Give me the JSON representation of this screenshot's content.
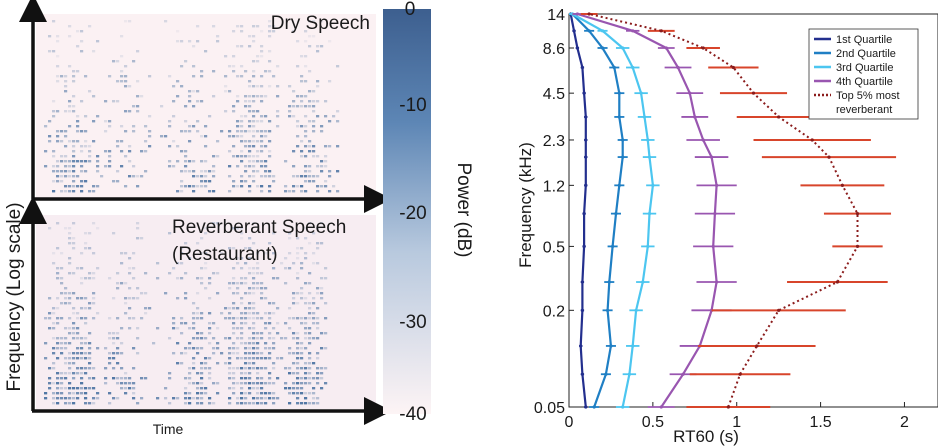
{
  "left_panel": {
    "y_axis_label": "Frequency (Log scale)",
    "x_axis_label": "Time",
    "top_title": "Dry Speech",
    "bottom_title_line1": "Reverberant Speech",
    "bottom_title_line2": "(Restaurant)",
    "colorbar": {
      "label": "Power (dB)",
      "ticks": [
        "0",
        "-10",
        "-20",
        "-30",
        "-40"
      ],
      "range": [
        -40,
        0
      ],
      "color_high": "#3d5f8f",
      "color_low": "#fdf4f5"
    }
  },
  "chart_data": {
    "type": "line",
    "xlabel": "RT60 (s)",
    "ylabel": "Frequency (kHz)",
    "xlim": [
      0,
      2.2
    ],
    "x_ticks": [
      "0",
      "0.5",
      "1",
      "1.5",
      "2"
    ],
    "y_scale": "log",
    "y_ticks": [
      "0.05",
      "0.2",
      "0.5",
      "1.2",
      "2.3",
      "4.5",
      "8.6",
      "14"
    ],
    "y_tick_values": [
      0.05,
      0.2,
      0.5,
      1.2,
      2.3,
      4.5,
      8.6,
      14
    ],
    "legend_position": "top-right",
    "freqs": [
      0.05,
      0.08,
      0.12,
      0.2,
      0.3,
      0.5,
      0.8,
      1.2,
      1.8,
      2.3,
      3.2,
      4.5,
      6.5,
      8.6,
      11,
      14
    ],
    "series": [
      {
        "name": "1st Quartile",
        "color": "#232f8e",
        "style": "solid",
        "values": [
          0.1,
          0.08,
          0.07,
          0.08,
          0.08,
          0.09,
          0.09,
          0.1,
          0.1,
          0.1,
          0.1,
          0.09,
          0.08,
          0.05,
          0.03,
          0.01
        ],
        "errors": [
          0.01,
          0.01,
          0.01,
          0.01,
          0.01,
          0.01,
          0.01,
          0.01,
          0.01,
          0.01,
          0.01,
          0.01,
          0.01,
          0.01,
          0.01,
          0.01
        ]
      },
      {
        "name": "2nd Quartile",
        "color": "#1f7fc4",
        "style": "solid",
        "values": [
          0.15,
          0.22,
          0.25,
          0.23,
          0.24,
          0.26,
          0.28,
          0.3,
          0.32,
          0.32,
          0.3,
          0.3,
          0.27,
          0.2,
          0.12,
          0.02
        ],
        "errors": [
          0.03,
          0.03,
          0.03,
          0.03,
          0.03,
          0.03,
          0.03,
          0.03,
          0.03,
          0.03,
          0.03,
          0.03,
          0.03,
          0.03,
          0.03,
          0.02
        ]
      },
      {
        "name": "3rd Quartile",
        "color": "#4cc6f0",
        "style": "solid",
        "values": [
          0.32,
          0.36,
          0.38,
          0.4,
          0.44,
          0.47,
          0.48,
          0.5,
          0.48,
          0.47,
          0.45,
          0.43,
          0.38,
          0.32,
          0.2,
          0.02
        ],
        "errors": [
          0.04,
          0.04,
          0.04,
          0.04,
          0.04,
          0.04,
          0.04,
          0.04,
          0.04,
          0.04,
          0.04,
          0.04,
          0.04,
          0.04,
          0.03,
          0.02
        ]
      },
      {
        "name": "4th Quartile",
        "color": "#9956b0",
        "style": "solid",
        "values": [
          0.55,
          0.68,
          0.78,
          0.85,
          0.88,
          0.86,
          0.87,
          0.88,
          0.85,
          0.8,
          0.75,
          0.72,
          0.65,
          0.58,
          0.38,
          0.05
        ],
        "errors": [
          0.08,
          0.08,
          0.12,
          0.12,
          0.12,
          0.12,
          0.12,
          0.12,
          0.1,
          0.1,
          0.08,
          0.08,
          0.08,
          0.05,
          0.04,
          0.03
        ],
        "markers": "|"
      },
      {
        "name": "Top 5% most reverberant",
        "color": "#8b1c1c",
        "style": "dotted",
        "values": [
          0.95,
          1.02,
          1.12,
          1.25,
          1.6,
          1.72,
          1.72,
          1.63,
          1.55,
          1.45,
          1.25,
          1.1,
          0.98,
          0.8,
          0.55,
          0.12
        ],
        "errors": [
          0.25,
          0.3,
          0.35,
          0.4,
          0.3,
          0.15,
          0.2,
          0.25,
          0.4,
          0.35,
          0.25,
          0.2,
          0.15,
          0.1,
          0.08,
          0.05
        ],
        "error_color": "#d8452b"
      }
    ]
  }
}
